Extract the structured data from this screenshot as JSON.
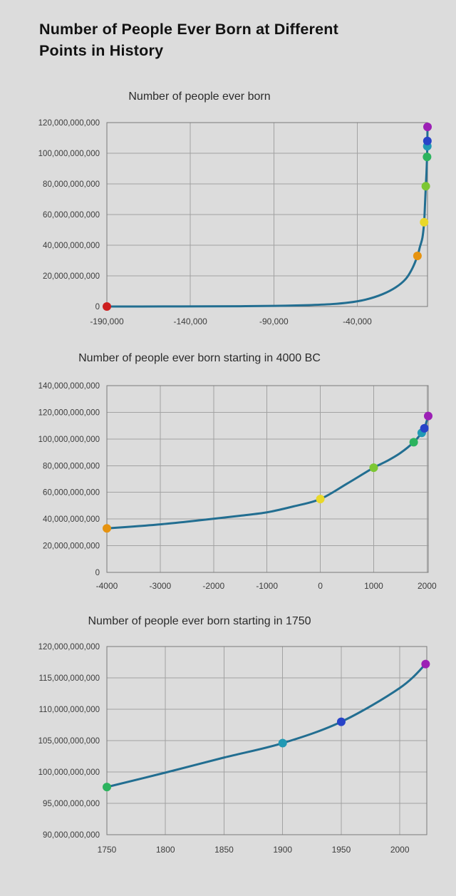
{
  "page": {
    "title_line1": "Number of People Ever Born at Different",
    "title_line2": "Points in History"
  },
  "colors": {
    "background": "#dcdcdc",
    "line": "#226e91",
    "grid": "#a2a2a2",
    "plot_border": "#7a7a7a",
    "axis_text": "#3c3c3c",
    "title_text": "#121212"
  },
  "chart_data": [
    {
      "type": "line",
      "title": "Number of people ever born",
      "xlabel": "",
      "ylabel": "",
      "legend": "none",
      "grid": true,
      "xlim": [
        -190000,
        2022
      ],
      "ylim_billions": [
        0,
        120
      ],
      "xticks": [
        {
          "value": -190000,
          "label": "-190,000"
        },
        {
          "value": -140000,
          "label": "-140,000"
        },
        {
          "value": -90000,
          "label": "-90,000"
        },
        {
          "value": -40000,
          "label": "-40,000"
        }
      ],
      "yticks": [
        {
          "value": 0,
          "label": "0"
        },
        {
          "value": 20,
          "label": "20,000,000,000"
        },
        {
          "value": 40,
          "label": "40,000,000,000"
        },
        {
          "value": 60,
          "label": "60,000,000,000"
        },
        {
          "value": 80,
          "label": "80,000,000,000"
        },
        {
          "value": 100,
          "label": "100,000,000,000"
        },
        {
          "value": 120,
          "label": "120,000,000,000"
        }
      ],
      "curve_year_billions": [
        [
          -190000,
          0
        ],
        [
          -170000,
          0
        ],
        [
          -150000,
          0.05
        ],
        [
          -130000,
          0.1
        ],
        [
          -110000,
          0.2
        ],
        [
          -90000,
          0.4
        ],
        [
          -70000,
          0.9
        ],
        [
          -55000,
          1.6
        ],
        [
          -45000,
          2.6
        ],
        [
          -35000,
          4.5
        ],
        [
          -25000,
          8
        ],
        [
          -17000,
          12.5
        ],
        [
          -11000,
          18
        ],
        [
          -7000,
          25
        ],
        [
          -4000,
          33
        ],
        [
          -2500,
          39
        ],
        [
          -1000,
          45
        ],
        [
          0,
          55
        ],
        [
          500,
          66
        ],
        [
          1000,
          78.5
        ],
        [
          1400,
          87
        ],
        [
          1750,
          97.6
        ],
        [
          1900,
          104.6
        ],
        [
          1950,
          108
        ],
        [
          2022,
          117.2
        ]
      ],
      "markers": [
        {
          "year": -190000,
          "value_billions": 0,
          "color": "#cd1f1f"
        },
        {
          "year": -4000,
          "value_billions": 33,
          "color": "#e69310"
        },
        {
          "year": 0,
          "value_billions": 55,
          "color": "#e9d829"
        },
        {
          "year": 1000,
          "value_billions": 78.5,
          "color": "#7cc733"
        },
        {
          "year": 1750,
          "value_billions": 97.6,
          "color": "#2cb35e"
        },
        {
          "year": 1900,
          "value_billions": 104.6,
          "color": "#2199b4"
        },
        {
          "year": 1950,
          "value_billions": 108,
          "color": "#2843c8"
        },
        {
          "year": 2022,
          "value_billions": 117.2,
          "color": "#9c20b5"
        }
      ]
    },
    {
      "type": "line",
      "title": "Number of people ever born starting in 4000 BC",
      "xlabel": "",
      "ylabel": "",
      "legend": "none",
      "grid": true,
      "xlim": [
        -4000,
        2022
      ],
      "ylim_billions": [
        0,
        140
      ],
      "xticks": [
        {
          "value": -4000,
          "label": "-4000"
        },
        {
          "value": -3000,
          "label": "-3000"
        },
        {
          "value": -2000,
          "label": "-2000"
        },
        {
          "value": -1000,
          "label": "-1000"
        },
        {
          "value": 0,
          "label": "0"
        },
        {
          "value": 1000,
          "label": "1000"
        },
        {
          "value": 2000,
          "label": "2000"
        }
      ],
      "yticks": [
        {
          "value": 0,
          "label": "0"
        },
        {
          "value": 20,
          "label": "20,000,000,000"
        },
        {
          "value": 40,
          "label": "40,000,000,000"
        },
        {
          "value": 60,
          "label": "60,000,000,000"
        },
        {
          "value": 80,
          "label": "80,000,000,000"
        },
        {
          "value": 100,
          "label": "100,000,000,000"
        },
        {
          "value": 120,
          "label": "120,000,000,000"
        },
        {
          "value": 140,
          "label": "140,000,000,000"
        }
      ],
      "curve_year_billions": [
        [
          -4000,
          33
        ],
        [
          -3500,
          34.4
        ],
        [
          -3000,
          36
        ],
        [
          -2500,
          38
        ],
        [
          -2000,
          40.2
        ],
        [
          -1500,
          42.5
        ],
        [
          -1000,
          45
        ],
        [
          -500,
          49.5
        ],
        [
          0,
          55
        ],
        [
          500,
          66.5
        ],
        [
          1000,
          78.5
        ],
        [
          1250,
          83.5
        ],
        [
          1500,
          89.5
        ],
        [
          1750,
          97.6
        ],
        [
          1900,
          104.6
        ],
        [
          1950,
          108
        ],
        [
          2022,
          117.2
        ]
      ],
      "markers": [
        {
          "year": -4000,
          "value_billions": 33,
          "color": "#e69310"
        },
        {
          "year": 0,
          "value_billions": 55,
          "color": "#e9d829"
        },
        {
          "year": 1000,
          "value_billions": 78.5,
          "color": "#7cc733"
        },
        {
          "year": 1750,
          "value_billions": 97.6,
          "color": "#2cb35e"
        },
        {
          "year": 1900,
          "value_billions": 104.6,
          "color": "#2199b4"
        },
        {
          "year": 1950,
          "value_billions": 108,
          "color": "#2843c8"
        },
        {
          "year": 2022,
          "value_billions": 117.2,
          "color": "#9c20b5"
        }
      ]
    },
    {
      "type": "line",
      "title": "Number of people ever born starting in 1750",
      "xlabel": "",
      "ylabel": "",
      "legend": "none",
      "grid": true,
      "xlim": [
        1750,
        2023
      ],
      "ylim_billions": [
        90,
        120
      ],
      "xticks": [
        {
          "value": 1750,
          "label": "1750"
        },
        {
          "value": 1800,
          "label": "1800"
        },
        {
          "value": 1850,
          "label": "1850"
        },
        {
          "value": 1900,
          "label": "1900"
        },
        {
          "value": 1950,
          "label": "1950"
        },
        {
          "value": 2000,
          "label": "2000"
        }
      ],
      "yticks": [
        {
          "value": 90,
          "label": "90,000,000,000"
        },
        {
          "value": 95,
          "label": "95,000,000,000"
        },
        {
          "value": 100,
          "label": "100,000,000,000"
        },
        {
          "value": 105,
          "label": "105,000,000,000"
        },
        {
          "value": 110,
          "label": "110,000,000,000"
        },
        {
          "value": 115,
          "label": "115,000,000,000"
        },
        {
          "value": 120,
          "label": "120,000,000,000"
        }
      ],
      "curve_year_billions": [
        [
          1750,
          97.6
        ],
        [
          1800,
          99.9
        ],
        [
          1850,
          102.3
        ],
        [
          1900,
          104.6
        ],
        [
          1950,
          108
        ],
        [
          2000,
          113.4
        ],
        [
          2022,
          117.2
        ]
      ],
      "markers": [
        {
          "year": 1750,
          "value_billions": 97.6,
          "color": "#2cb35e"
        },
        {
          "year": 1900,
          "value_billions": 104.6,
          "color": "#2199b4"
        },
        {
          "year": 1950,
          "value_billions": 108,
          "color": "#2843c8"
        },
        {
          "year": 2022,
          "value_billions": 117.2,
          "color": "#9c20b5"
        }
      ]
    }
  ]
}
